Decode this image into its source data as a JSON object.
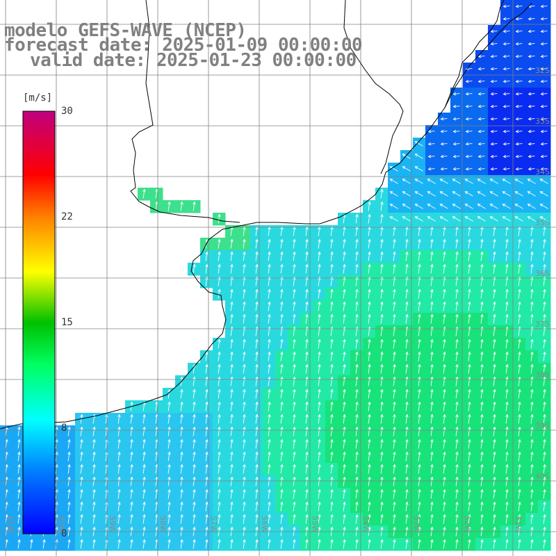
{
  "titles": {
    "line1": "modelo GEFS-WAVE (NCEP)",
    "line2": "forecast date: 2025-01-09 00:00:00",
    "line3": "valid date: 2025-01-23 00:00:00"
  },
  "colorbar": {
    "unit": "[m/s]",
    "ticks": [
      "30",
      "22",
      "15",
      "8",
      "0"
    ],
    "min": 0,
    "max": 30,
    "colors": [
      "#0000ff",
      "#00aaff",
      "#00ffff",
      "#00e000",
      "#ffff00",
      "#ff8000",
      "#ff0000",
      "#c00080"
    ]
  },
  "map": {
    "lat_labels": [
      "32S",
      "33S",
      "34S",
      "35S",
      "36S",
      "37S",
      "38S",
      "39S",
      "40S"
    ],
    "lon_labels": [
      "61W",
      "60W",
      "59W",
      "58W",
      "57W",
      "56W",
      "55W",
      "54W",
      "53W",
      "52W",
      "51W"
    ],
    "field": "wind speed",
    "colors": {
      "land": "#ffffff",
      "coast": "#000000",
      "grid": "#808080",
      "arrows": "#ffffff"
    }
  }
}
